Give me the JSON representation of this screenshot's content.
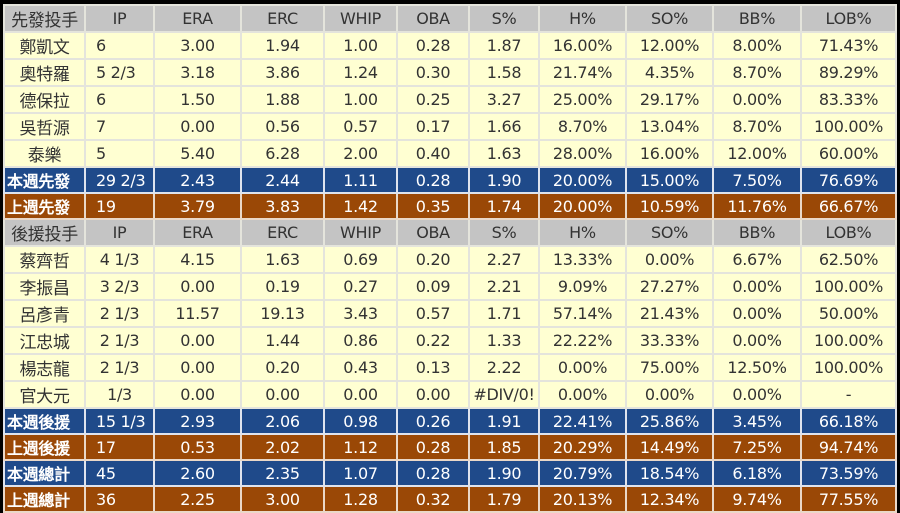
{
  "columns": [
    "IP",
    "ERA",
    "ERC",
    "WHIP",
    "OBA",
    "S%",
    "H%",
    "SO%",
    "BB%",
    "LOB%"
  ],
  "starters": {
    "header": "先發投手",
    "rows": [
      {
        "name": "鄭凱文",
        "values": [
          "6",
          "3.00",
          "1.94",
          "1.00",
          "0.28",
          "1.87",
          "16.00%",
          "12.00%",
          "8.00%",
          "71.43%"
        ]
      },
      {
        "name": "奧特羅",
        "values": [
          "5 2/3",
          "3.18",
          "3.86",
          "1.24",
          "0.30",
          "1.58",
          "21.74%",
          "4.35%",
          "8.70%",
          "89.29%"
        ]
      },
      {
        "name": "德保拉",
        "values": [
          "6",
          "1.50",
          "1.88",
          "1.00",
          "0.25",
          "3.27",
          "25.00%",
          "29.17%",
          "0.00%",
          "83.33%"
        ]
      },
      {
        "name": "吳哲源",
        "values": [
          "7",
          "0.00",
          "0.56",
          "0.57",
          "0.17",
          "1.66",
          "8.70%",
          "13.04%",
          "8.70%",
          "100.00%"
        ]
      },
      {
        "name": "泰樂",
        "values": [
          "5",
          "5.40",
          "6.28",
          "2.00",
          "0.40",
          "1.63",
          "28.00%",
          "16.00%",
          "12.00%",
          "60.00%"
        ]
      }
    ],
    "summary": [
      {
        "name": "本週先發",
        "style": "blue",
        "values": [
          "29 2/3",
          "2.43",
          "2.44",
          "1.11",
          "0.28",
          "1.90",
          "20.00%",
          "15.00%",
          "7.50%",
          "76.69%"
        ]
      },
      {
        "name": "上週先發",
        "style": "brown",
        "values": [
          "19",
          "3.79",
          "3.83",
          "1.42",
          "0.35",
          "1.74",
          "20.00%",
          "10.59%",
          "11.76%",
          "66.67%"
        ]
      }
    ]
  },
  "relievers": {
    "header": "後援投手",
    "rows": [
      {
        "name": "蔡齊哲",
        "values": [
          "4 1/3",
          "4.15",
          "1.63",
          "0.69",
          "0.20",
          "2.27",
          "13.33%",
          "0.00%",
          "6.67%",
          "62.50%"
        ]
      },
      {
        "name": "李振昌",
        "values": [
          "3 2/3",
          "0.00",
          "0.19",
          "0.27",
          "0.09",
          "2.21",
          "9.09%",
          "27.27%",
          "0.00%",
          "100.00%"
        ]
      },
      {
        "name": "呂彥青",
        "values": [
          "2 1/3",
          "11.57",
          "19.13",
          "3.43",
          "0.57",
          "1.71",
          "57.14%",
          "21.43%",
          "0.00%",
          "50.00%"
        ]
      },
      {
        "name": "江忠城",
        "values": [
          "2 1/3",
          "0.00",
          "1.44",
          "0.86",
          "0.22",
          "1.33",
          "22.22%",
          "33.33%",
          "0.00%",
          "100.00%"
        ]
      },
      {
        "name": "楊志龍",
        "values": [
          "2 1/3",
          "0.00",
          "0.20",
          "0.43",
          "0.13",
          "2.22",
          "0.00%",
          "75.00%",
          "12.50%",
          "100.00%"
        ]
      },
      {
        "name": "官大元",
        "values": [
          "1/3",
          "0.00",
          "0.00",
          "0.00",
          "0.00",
          "#DIV/0!",
          "0.00%",
          "0.00%",
          "0.00%",
          "-"
        ]
      }
    ],
    "summary": [
      {
        "name": "本週後援",
        "style": "blue",
        "values": [
          "15 1/3",
          "2.93",
          "2.06",
          "0.98",
          "0.26",
          "1.91",
          "22.41%",
          "25.86%",
          "3.45%",
          "66.18%"
        ]
      },
      {
        "name": "上週後援",
        "style": "brown",
        "values": [
          "17",
          "0.53",
          "2.02",
          "1.12",
          "0.28",
          "1.85",
          "20.29%",
          "14.49%",
          "7.25%",
          "94.74%"
        ]
      },
      {
        "name": "本週總計",
        "style": "blue",
        "values": [
          "45",
          "2.60",
          "2.35",
          "1.07",
          "0.28",
          "1.90",
          "20.79%",
          "18.54%",
          "6.18%",
          "73.59%"
        ]
      },
      {
        "name": "上週總計",
        "style": "brown",
        "values": [
          "36",
          "2.25",
          "3.00",
          "1.28",
          "0.32",
          "1.79",
          "20.13%",
          "12.34%",
          "9.74%",
          "77.55%"
        ]
      }
    ]
  },
  "colors": {
    "header": "#c4c4c4",
    "row": "#ffffd2",
    "this_week": "#1f4a8a",
    "last_week": "#9a4806"
  }
}
